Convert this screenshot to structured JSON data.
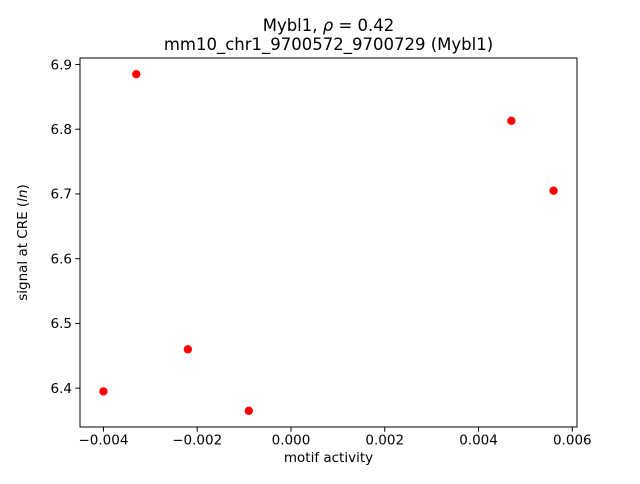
{
  "labels": {
    "title1_prefix": "Mybl1, ",
    "title1_rho": "ρ",
    "title1_suffix": " = 0.42",
    "title2": "mm10_chr1_9700572_9700729 (Mybl1)",
    "ylabel_prefix": "signal at CRE (",
    "ylabel_italic": "ln",
    "ylabel_suffix": ")"
  },
  "chart_data": {
    "type": "scatter",
    "title": "Mybl1, ρ = 0.42\nmm10_chr1_9700572_9700729 (Mybl1)",
    "rho": 0.42,
    "xlabel": "motif activity",
    "ylabel": "signal at CRE (ln)",
    "marker_color": "#ff0000",
    "axis_color": "#000000",
    "grid": false,
    "legend": false,
    "xlim": [
      -0.0045,
      0.0061
    ],
    "ylim": [
      6.34,
      6.91
    ],
    "x_ticks": [
      {
        "value": -0.004,
        "label": "−0.004"
      },
      {
        "value": -0.002,
        "label": "−0.002"
      },
      {
        "value": 0.0,
        "label": "0.000"
      },
      {
        "value": 0.002,
        "label": "0.002"
      },
      {
        "value": 0.004,
        "label": "0.004"
      },
      {
        "value": 0.006,
        "label": "0.006"
      }
    ],
    "y_ticks": [
      {
        "value": 6.4,
        "label": "6.4"
      },
      {
        "value": 6.5,
        "label": "6.5"
      },
      {
        "value": 6.6,
        "label": "6.6"
      },
      {
        "value": 6.7,
        "label": "6.7"
      },
      {
        "value": 6.8,
        "label": "6.8"
      },
      {
        "value": 6.9,
        "label": "6.9"
      }
    ],
    "points": [
      {
        "x": -0.004,
        "y": 6.395
      },
      {
        "x": -0.0033,
        "y": 6.885
      },
      {
        "x": -0.0022,
        "y": 6.46
      },
      {
        "x": -0.0009,
        "y": 6.365
      },
      {
        "x": 0.0047,
        "y": 6.813
      },
      {
        "x": 0.0056,
        "y": 6.705
      }
    ]
  }
}
